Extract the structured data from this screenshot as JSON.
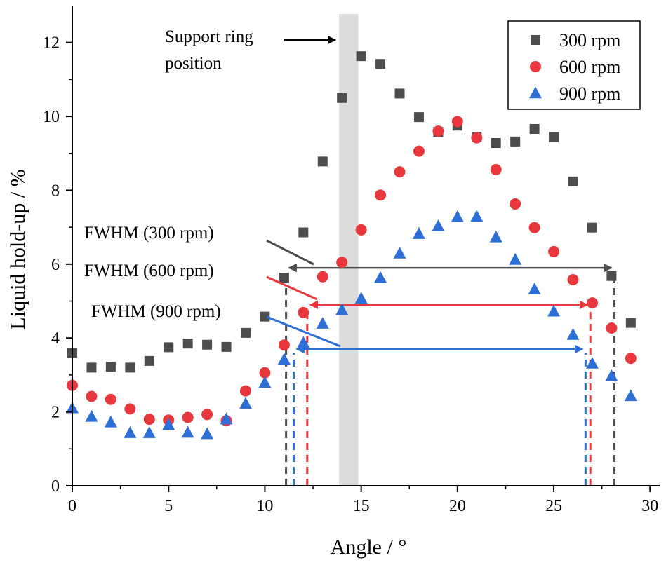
{
  "chart_data": {
    "type": "scatter",
    "xlabel": "Angle / °",
    "ylabel": "Liquid hold-up / %",
    "xlim": [
      0,
      30.5
    ],
    "ylim": [
      0,
      13
    ],
    "xticks": [
      0,
      5,
      10,
      15,
      20,
      25,
      30
    ],
    "yticks": [
      0,
      2,
      4,
      6,
      8,
      10,
      12
    ],
    "grid": false,
    "legend_position": "top-right",
    "series": [
      {
        "name": "300 rpm",
        "marker": "square",
        "color": "#4d4d4d",
        "x": [
          0,
          1,
          2,
          3,
          4,
          5,
          6,
          7,
          8,
          9,
          10,
          11,
          12,
          13,
          14,
          15,
          16,
          17,
          18,
          19,
          20,
          21,
          22,
          23,
          24,
          25,
          26,
          27,
          28,
          29
        ],
        "y": [
          3.6,
          3.2,
          3.22,
          3.2,
          3.38,
          3.75,
          3.85,
          3.82,
          3.76,
          4.14,
          4.58,
          5.63,
          6.86,
          8.78,
          10.5,
          11.63,
          11.42,
          10.62,
          9.98,
          9.58,
          9.75,
          9.45,
          9.28,
          9.32,
          9.66,
          9.44,
          8.24,
          6.99,
          5.68,
          4.41
        ]
      },
      {
        "name": "600 rpm",
        "marker": "circle",
        "color": "#e8383d",
        "x": [
          0,
          1,
          2,
          3,
          4,
          5,
          6,
          7,
          8,
          9,
          10,
          11,
          12,
          13,
          14,
          15,
          16,
          17,
          18,
          19,
          20,
          21,
          22,
          23,
          24,
          25,
          26,
          27,
          28,
          29
        ],
        "y": [
          2.72,
          2.42,
          2.34,
          2.08,
          1.8,
          1.78,
          1.85,
          1.93,
          1.76,
          2.57,
          3.06,
          3.81,
          4.69,
          5.66,
          6.05,
          6.93,
          7.87,
          8.5,
          9.06,
          9.6,
          9.86,
          9.42,
          8.56,
          7.63,
          6.99,
          6.34,
          5.58,
          4.95,
          4.27,
          3.45
        ]
      },
      {
        "name": "900 rpm",
        "marker": "triangle",
        "color": "#2d6fd6",
        "x": [
          0,
          1,
          2,
          3,
          4,
          5,
          6,
          7,
          8,
          9,
          10,
          11,
          12,
          13,
          14,
          15,
          16,
          17,
          18,
          19,
          20,
          21,
          22,
          23,
          24,
          25,
          26,
          27,
          28,
          29
        ],
        "y": [
          2.1,
          1.87,
          1.72,
          1.43,
          1.43,
          1.65,
          1.44,
          1.4,
          1.8,
          2.22,
          2.79,
          3.42,
          3.87,
          4.39,
          4.76,
          5.07,
          5.63,
          6.29,
          6.82,
          7.03,
          7.28,
          7.29,
          6.73,
          6.12,
          5.32,
          4.72,
          4.09,
          3.31,
          2.97,
          2.43
        ]
      }
    ],
    "support_ring": {
      "label_line1": "Support ring",
      "label_line2": "position",
      "x_start": 13.85,
      "x_end": 14.85,
      "color": "#dcdcdc"
    },
    "fwhm": [
      {
        "label": "FWHM (300 rpm)",
        "color": "#4d4d4d",
        "y": 5.9,
        "x_left": 11.1,
        "x_right": 28.15
      },
      {
        "label": "FWHM (600 rpm)",
        "color": "#e8383d",
        "y": 4.9,
        "x_left": 12.2,
        "x_right": 26.9
      },
      {
        "label": "FWHM (900 rpm)",
        "color": "#2d6fd6",
        "y": 3.7,
        "x_left": 11.5,
        "x_right": 26.65
      }
    ]
  }
}
